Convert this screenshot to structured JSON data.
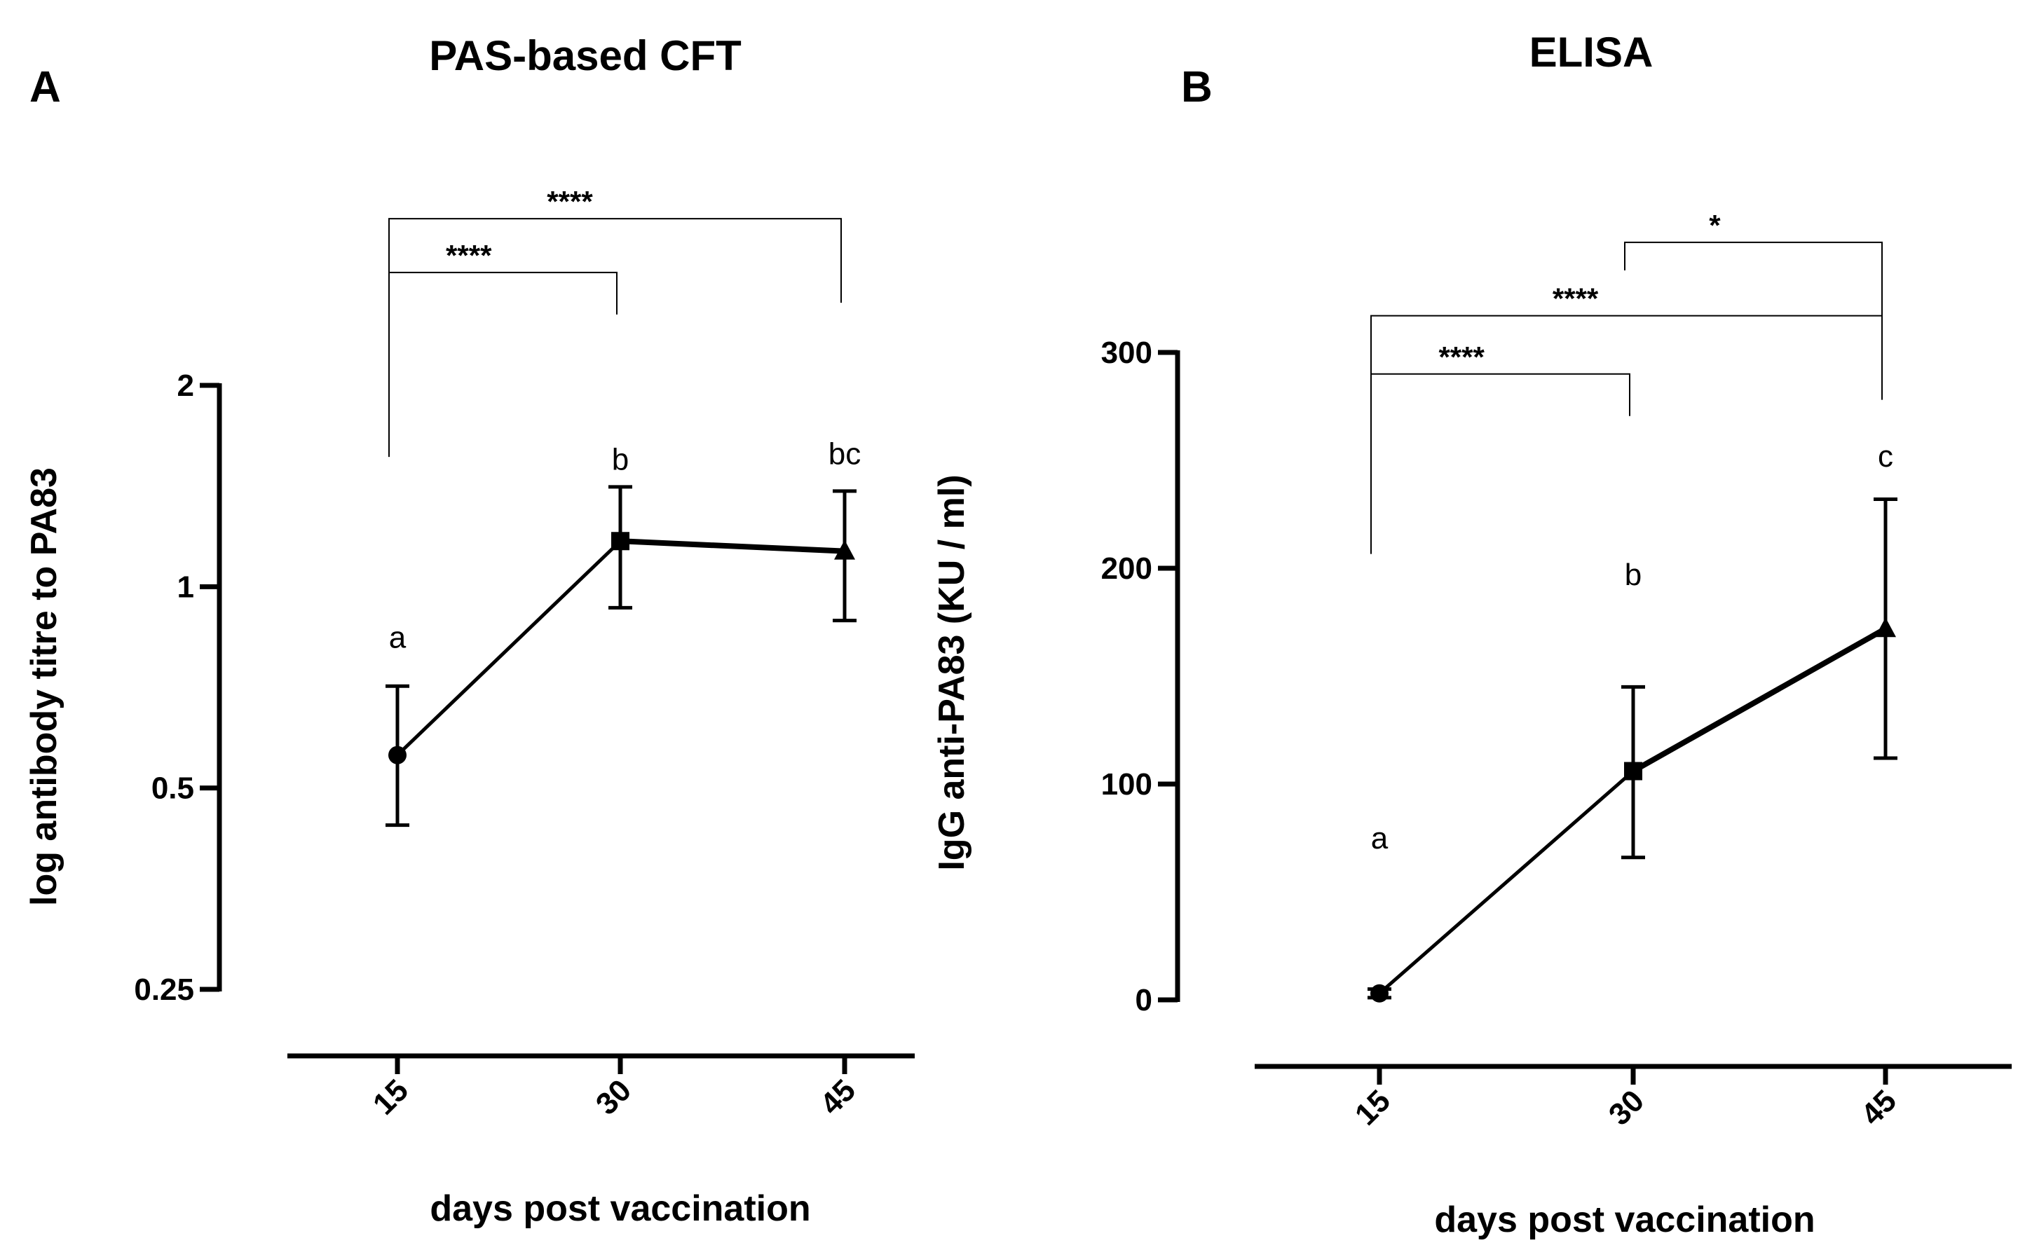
{
  "chart_data": [
    {
      "panel": "A",
      "title": "PAS-based CFT",
      "type": "line",
      "scale": "log2",
      "xlabel": "days post vaccination",
      "ylabel": "log antibody titre to PA83",
      "categories": [
        "15",
        "30",
        "45"
      ],
      "ylim": [
        0.25,
        2
      ],
      "yticks": [
        {
          "value": 0.25,
          "label": "0.25"
        },
        {
          "value": 0.5,
          "label": "0.5"
        },
        {
          "value": 1,
          "label": "1"
        },
        {
          "value": 2,
          "label": "2"
        }
      ],
      "series": [
        {
          "name": "PAS-based CFT",
          "markers": [
            "circle",
            "square",
            "triangle"
          ],
          "values": [
            0.56,
            1.17,
            1.13
          ],
          "err_low": [
            0.44,
            0.93,
            0.89
          ],
          "err_high": [
            0.71,
            1.41,
            1.39
          ]
        }
      ],
      "letters": [
        "a",
        "b",
        "bc"
      ],
      "letter_at": [
        0.84,
        1.55,
        1.58
      ],
      "comparisons": [
        {
          "from": 0,
          "to": 1,
          "label": "****",
          "at": 2.95
        },
        {
          "from": 0,
          "to": 2,
          "label": "****",
          "at": 3.55
        }
      ]
    },
    {
      "panel": "B",
      "title": "ELISA",
      "type": "line",
      "scale": "linear",
      "xlabel": "days post vaccination",
      "ylabel": "IgG anti-PA83 (KU / ml)",
      "categories": [
        "15",
        "30",
        "45"
      ],
      "ylim": [
        0,
        300
      ],
      "yticks": [
        {
          "value": 0,
          "label": "0"
        },
        {
          "value": 100,
          "label": "100"
        },
        {
          "value": 200,
          "label": "200"
        },
        {
          "value": 300,
          "label": "300"
        }
      ],
      "series": [
        {
          "name": "ELISA",
          "markers": [
            "circle",
            "square",
            "triangle"
          ],
          "values": [
            3,
            106,
            172
          ],
          "err_low": [
            1,
            66,
            112
          ],
          "err_high": [
            5,
            145,
            232
          ]
        }
      ],
      "letters": [
        "a",
        "b",
        "c"
      ],
      "letter_at": [
        75,
        197,
        252
      ],
      "comparisons": [
        {
          "from": 0,
          "to": 1,
          "label": "****",
          "at": 290
        },
        {
          "from": 0,
          "to": 2,
          "label": "****",
          "at": 317
        },
        {
          "from": 1,
          "to": 2,
          "label": "*",
          "at": 351
        }
      ]
    }
  ]
}
